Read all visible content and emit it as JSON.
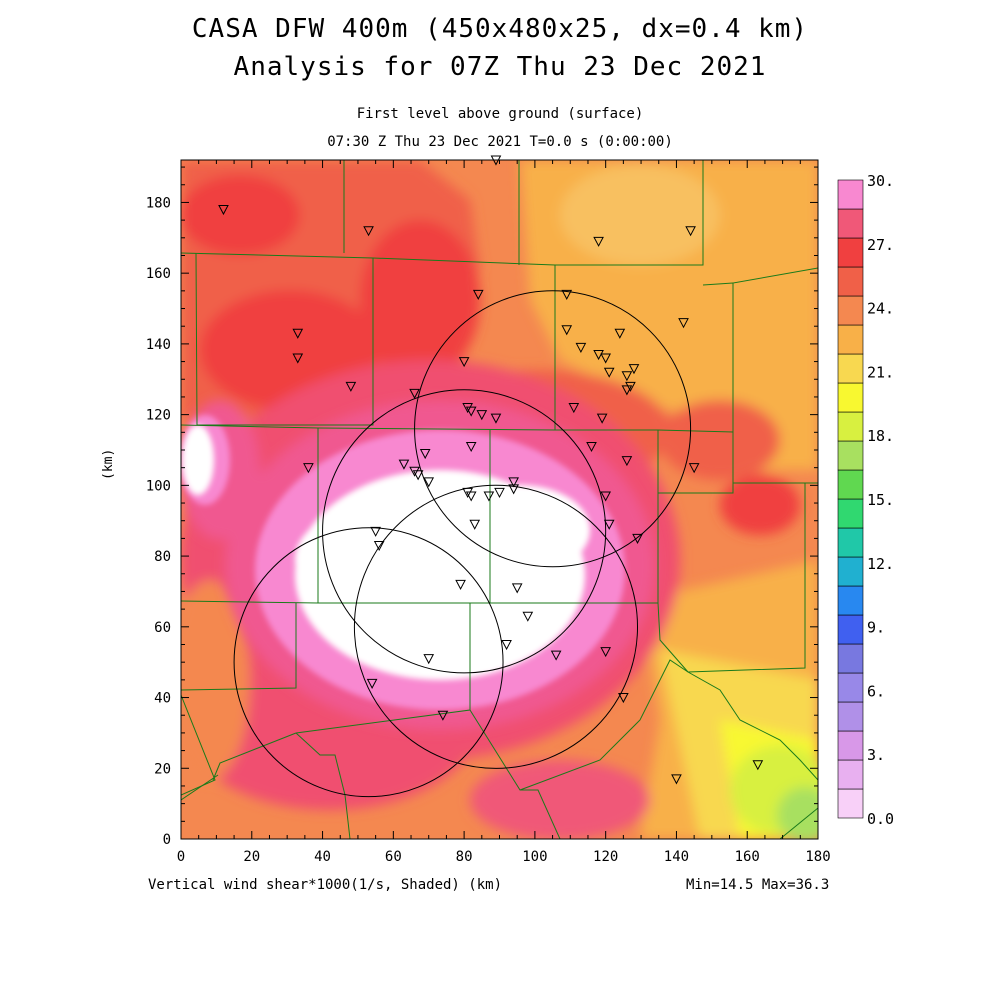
{
  "title_line1": "CASA DFW 400m (450x480x25, dx=0.4 km)",
  "title_line2": "Analysis for 07Z Thu 23 Dec 2021",
  "subtitle_line1": "First level above ground (surface)",
  "subtitle_line2": "07:30 Z Thu 23 Dec 2021    T=0.0 s (0:00:00)",
  "xlabel": "Vertical wind shear*1000(1/s, Shaded)  (km)",
  "ylabel": "(km)",
  "minmax_text": "Min=14.5 Max=36.3",
  "chart_data": {
    "type": "heatmap",
    "title": "CASA DFW 400m (450x480x25, dx=0.4 km)",
    "variable": "Vertical wind shear*1000(1/s, Shaded)",
    "xlim": [
      0,
      180
    ],
    "ylim": [
      0,
      192
    ],
    "x_ticks": [
      0,
      20,
      40,
      60,
      80,
      100,
      120,
      140,
      160,
      180
    ],
    "y_ticks": [
      0,
      20,
      40,
      60,
      80,
      100,
      120,
      140,
      160,
      180
    ],
    "colorbar": {
      "min": 0,
      "max": 30,
      "levels": 20,
      "tick_labels": [
        "0.0",
        "3.",
        "6.",
        "9.",
        "12.",
        "15.",
        "18.",
        "21.",
        "24.",
        "27.",
        "30."
      ],
      "colors": [
        "#f8d0f8",
        "#e8b0f0",
        "#d898e8",
        "#b090e8",
        "#9888e8",
        "#7878e0",
        "#4060f0",
        "#2888f0",
        "#20b0d0",
        "#20c8a8",
        "#30d870",
        "#60d850",
        "#a8e060",
        "#d8f040",
        "#f8f830",
        "#f8d850",
        "#f8b048",
        "#f48850",
        "#f06048",
        "#f04040",
        "#f05878",
        "#f888d0"
      ]
    },
    "range": {
      "min": 14.5,
      "max": 36.3
    },
    "radar_circles": [
      {
        "cx": 53,
        "cy": 50,
        "r": 38
      },
      {
        "cx": 80,
        "cy": 87,
        "r": 40
      },
      {
        "cx": 89,
        "cy": 60,
        "r": 40
      },
      {
        "cx": 105,
        "cy": 116,
        "r": 39
      }
    ],
    "stations": [
      [
        12,
        178
      ],
      [
        53,
        172
      ],
      [
        89,
        192
      ],
      [
        118,
        169
      ],
      [
        144,
        172
      ],
      [
        84,
        154
      ],
      [
        109,
        154
      ],
      [
        33,
        143
      ],
      [
        109,
        144
      ],
      [
        113,
        139
      ],
      [
        118,
        137
      ],
      [
        120,
        136
      ],
      [
        124,
        143
      ],
      [
        142,
        146
      ],
      [
        33,
        136
      ],
      [
        80,
        135
      ],
      [
        128,
        133
      ],
      [
        126,
        131
      ],
      [
        121,
        132
      ],
      [
        127,
        128
      ],
      [
        126,
        127
      ],
      [
        48,
        128
      ],
      [
        66,
        126
      ],
      [
        81,
        122
      ],
      [
        82,
        121
      ],
      [
        111,
        122
      ],
      [
        85,
        120
      ],
      [
        89,
        119
      ],
      [
        119,
        119
      ],
      [
        82,
        111
      ],
      [
        116,
        111
      ],
      [
        126,
        107
      ],
      [
        145,
        105
      ],
      [
        36,
        105
      ],
      [
        63,
        106
      ],
      [
        66,
        104
      ],
      [
        67,
        103
      ],
      [
        70,
        101
      ],
      [
        69,
        109
      ],
      [
        94,
        101
      ],
      [
        94,
        99
      ],
      [
        90,
        98
      ],
      [
        81,
        98
      ],
      [
        82,
        97
      ],
      [
        87,
        97
      ],
      [
        120,
        97
      ],
      [
        121,
        89
      ],
      [
        83,
        89
      ],
      [
        129,
        85
      ],
      [
        55,
        87
      ],
      [
        56,
        83
      ],
      [
        79,
        72
      ],
      [
        95,
        71
      ],
      [
        98,
        63
      ],
      [
        92,
        55
      ],
      [
        106,
        52
      ],
      [
        120,
        53
      ],
      [
        70,
        51
      ],
      [
        54,
        44
      ],
      [
        125,
        40
      ],
      [
        74,
        35
      ],
      [
        140,
        17
      ],
      [
        163,
        21
      ]
    ]
  }
}
